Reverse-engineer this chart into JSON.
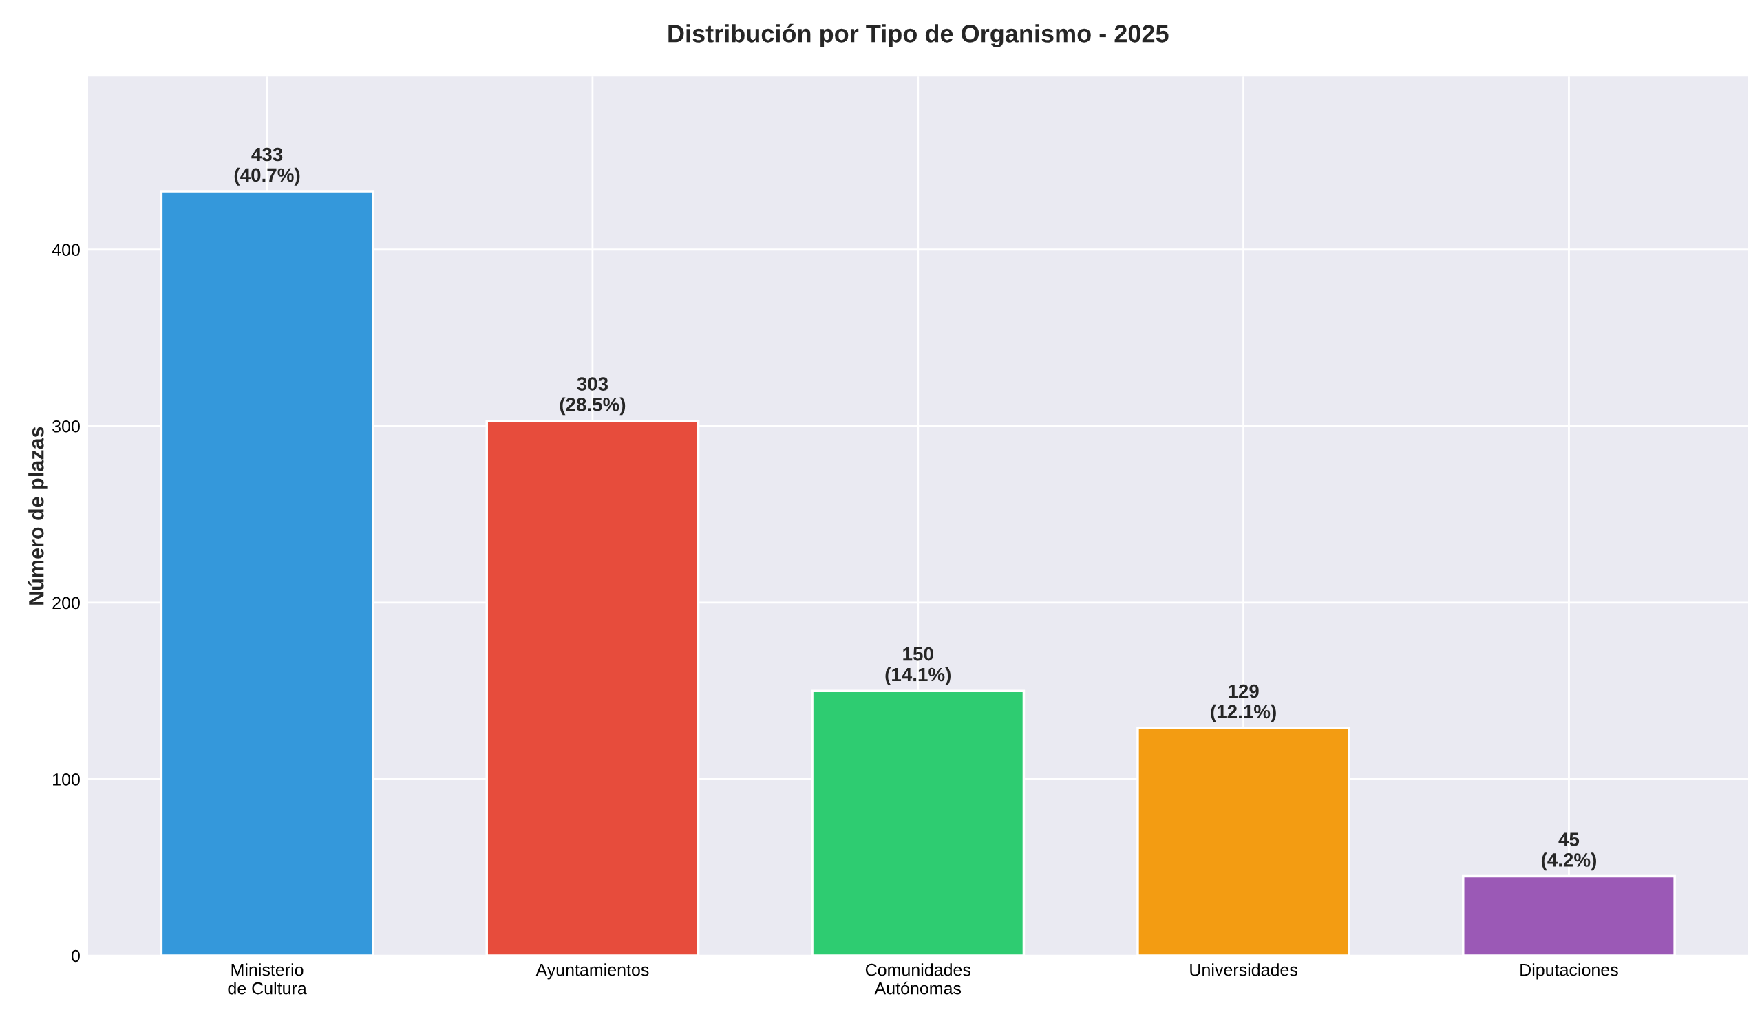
{
  "chart_data": {
    "type": "bar",
    "title": "Distribución por Tipo de Organismo - 2025",
    "ylabel": "Número de plazas",
    "categories": [
      "Ministerio\nde Cultura",
      "Ayuntamientos",
      "Comunidades\nAutónomas",
      "Universidades",
      "Diputaciones"
    ],
    "values": [
      433,
      303,
      150,
      129,
      45
    ],
    "colors": [
      "#3498db",
      "#e74c3c",
      "#2ecc71",
      "#f39c12",
      "#9b59b6"
    ],
    "value_labels": [
      "433\n(40.7%)",
      "303\n(28.5%)",
      "150\n(14.1%)",
      "129\n(12.1%)",
      "45\n(4.2%)"
    ],
    "ylim": [
      0,
      498
    ],
    "yticks": [
      0,
      100,
      200,
      300,
      400
    ],
    "grid": true
  }
}
